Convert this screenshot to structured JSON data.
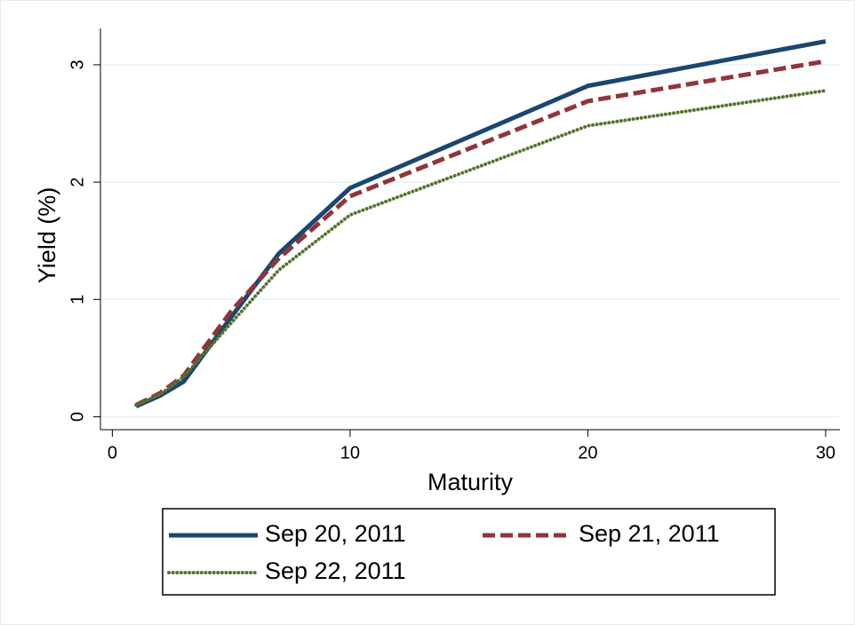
{
  "chart_data": {
    "type": "line",
    "x_label": "Maturity",
    "y_label": "Yield (%)",
    "x": [
      1,
      2,
      3,
      5,
      7,
      10,
      20,
      30
    ],
    "series": [
      {
        "name": "Sep 20, 2011",
        "color": "#1a476f",
        "values": [
          0.09,
          0.18,
          0.3,
          0.85,
          1.39,
          1.95,
          2.82,
          3.2
        ]
      },
      {
        "name": "Sep 21, 2011",
        "color": "#90353b",
        "values": [
          0.1,
          0.2,
          0.35,
          0.9,
          1.35,
          1.88,
          2.69,
          3.03
        ]
      },
      {
        "name": "Sep 22, 2011",
        "color": "#55752f",
        "values": [
          0.1,
          0.19,
          0.34,
          0.8,
          1.25,
          1.72,
          2.48,
          2.78
        ]
      }
    ],
    "xlim": [
      -0.5,
      30.6
    ],
    "ylim": [
      -0.11,
      3.31
    ],
    "xticks": [
      0,
      10,
      20,
      30
    ],
    "yticks": [
      0,
      1,
      2,
      3
    ],
    "grid": true
  }
}
